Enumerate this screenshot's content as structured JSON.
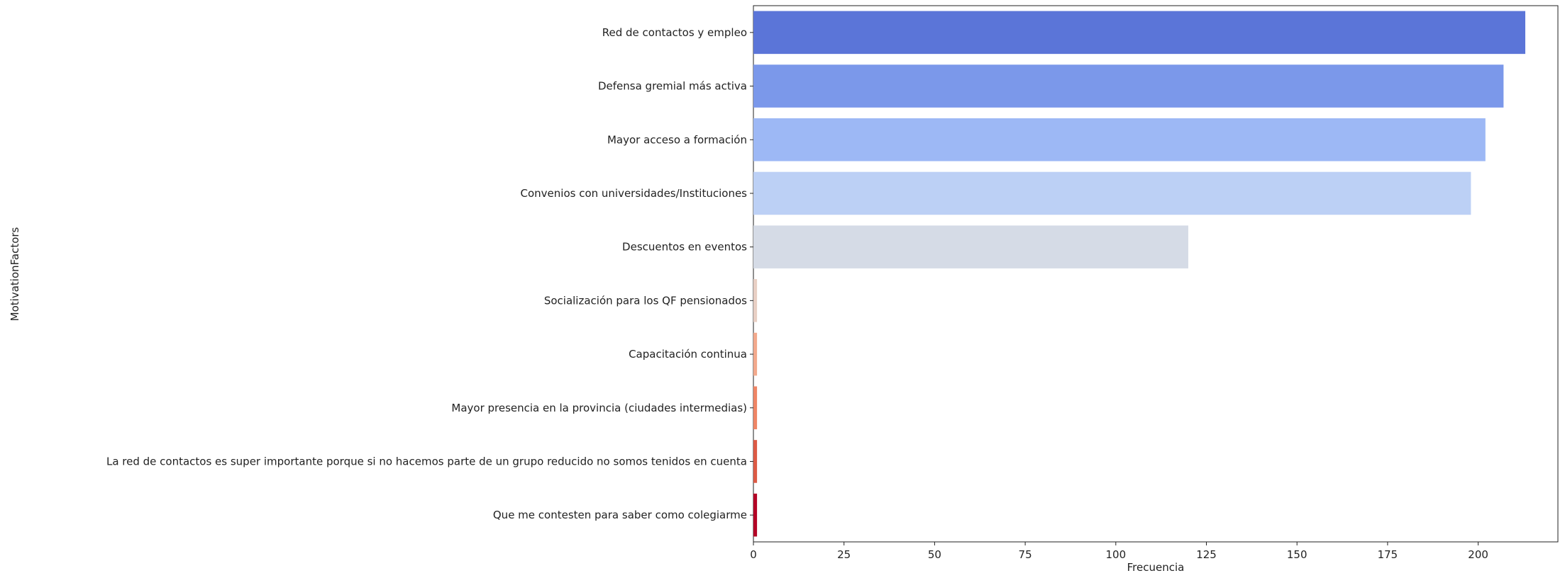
{
  "chart_data": {
    "type": "bar",
    "orientation": "horizontal",
    "title": "",
    "xlabel": "Frecuencia",
    "ylabel": "MotivationFactors",
    "categories": [
      "Red de contactos y empleo",
      "Defensa gremial más activa",
      "Mayor acceso a formación",
      "Convenios con universidades/Instituciones",
      "Descuentos en eventos",
      "Socialización para los QF pensionados",
      "Capacitación continua",
      "Mayor presencia en la provincia (ciudades intermedias)",
      "La red de contactos es super importante porque si no hacemos parte de un grupo reducido no somos tenidos en cuenta",
      "Que me contesten para saber como colegiarme"
    ],
    "values": [
      213,
      207,
      202,
      198,
      120,
      1,
      1,
      1,
      1,
      1
    ],
    "colors": [
      "#5b75d8",
      "#7b98ea",
      "#9db8f5",
      "#bcd0f5",
      "#d5dbe6",
      "#e8cfc4",
      "#f2a98c",
      "#ee8565",
      "#dc5a45",
      "#b40426"
    ],
    "xlim": [
      0,
      222
    ],
    "xticks": [
      0,
      25,
      50,
      75,
      100,
      125,
      150,
      175,
      200
    ],
    "grid": false,
    "legend": "none"
  }
}
